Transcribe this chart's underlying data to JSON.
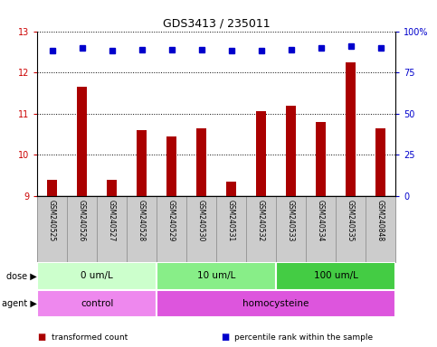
{
  "title": "GDS3413 / 235011",
  "samples": [
    "GSM240525",
    "GSM240526",
    "GSM240527",
    "GSM240528",
    "GSM240529",
    "GSM240530",
    "GSM240531",
    "GSM240532",
    "GSM240533",
    "GSM240534",
    "GSM240535",
    "GSM240848"
  ],
  "transformed_count": [
    9.4,
    11.65,
    9.4,
    10.6,
    10.45,
    10.65,
    9.35,
    11.05,
    11.2,
    10.8,
    12.25,
    10.65
  ],
  "percentile_rank": [
    88,
    90,
    88,
    89,
    89,
    89,
    88,
    88,
    89,
    90,
    91,
    90
  ],
  "bar_color": "#aa0000",
  "dot_color": "#0000cc",
  "ylim_left": [
    9,
    13
  ],
  "ylim_right": [
    0,
    100
  ],
  "yticks_left": [
    9,
    10,
    11,
    12,
    13
  ],
  "yticks_right": [
    0,
    25,
    50,
    75,
    100
  ],
  "yticklabels_right": [
    "0",
    "25",
    "50",
    "75",
    "100%"
  ],
  "dose_groups": [
    {
      "label": "0 um/L",
      "start": 0,
      "end": 3,
      "color": "#ccffcc"
    },
    {
      "label": "10 um/L",
      "start": 4,
      "end": 7,
      "color": "#88ee88"
    },
    {
      "label": "100 um/L",
      "start": 8,
      "end": 11,
      "color": "#44cc44"
    }
  ],
  "agent_groups": [
    {
      "label": "control",
      "start": 0,
      "end": 3,
      "color": "#ee88ee"
    },
    {
      "label": "homocysteine",
      "start": 4,
      "end": 11,
      "color": "#dd55dd"
    }
  ],
  "dose_label": "dose",
  "agent_label": "agent",
  "legend_items": [
    {
      "color": "#aa0000",
      "label": "transformed count"
    },
    {
      "color": "#0000cc",
      "label": "percentile rank within the sample"
    }
  ],
  "grid_color": "black",
  "grid_style": "dotted",
  "left_axis_color": "#cc0000",
  "right_axis_color": "#0000cc",
  "label_area_color": "#cccccc",
  "label_area_border": "#999999"
}
